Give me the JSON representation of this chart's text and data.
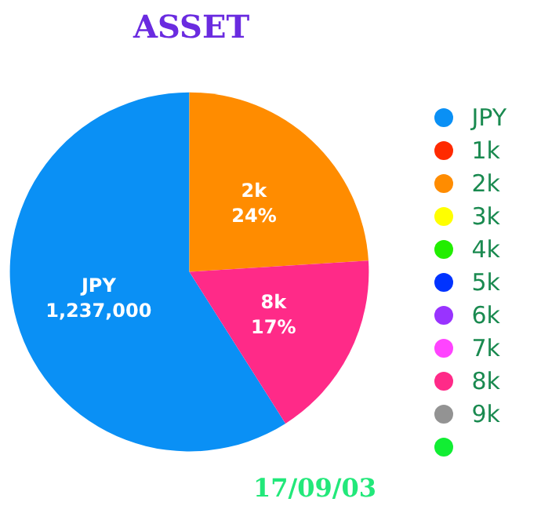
{
  "chart_data": {
    "type": "pie",
    "title": "ASSET",
    "categories": [
      "JPY",
      "1k",
      "2k",
      "3k",
      "4k",
      "5k",
      "6k",
      "7k",
      "8k",
      "9k",
      null
    ],
    "values": [
      59,
      0,
      24,
      0,
      0,
      0,
      0,
      0,
      17,
      0,
      0
    ],
    "colors": [
      "#0a90f5",
      "#ff2a00",
      "#ff8c00",
      "#ffff00",
      "#22ee00",
      "#0033ff",
      "#9933ff",
      "#ff44ff",
      "#ff2a88",
      "#939393",
      "#11ee33"
    ],
    "value_labels": [
      null,
      null,
      "24%",
      null,
      null,
      null,
      null,
      null,
      "17%",
      null,
      null
    ],
    "legend": "right",
    "annotations": [
      "17/09/03",
      {
        "text": "1,237,000",
        "x": "JPY"
      }
    ]
  }
}
